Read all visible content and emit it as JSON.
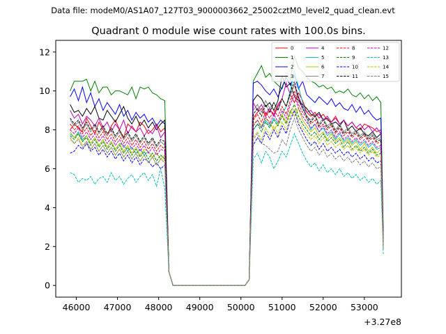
{
  "chart_data": {
    "type": "line",
    "suptitle": "Data file: modeM0/AS1A07_127T03_9000003662_25002cztM0_level2_quad_clean.evt",
    "title": "Quadrant 0 module wise count rates with 100.0s bins.",
    "xlabel": "",
    "ylabel": "",
    "x_offset_label": "+3.27e8",
    "xlim": [
      45500,
      53900
    ],
    "ylim": [
      -0.6,
      12.6
    ],
    "xticks": [
      46000,
      47000,
      48000,
      49000,
      50000,
      51000,
      52000,
      53000
    ],
    "yticks": [
      0,
      2,
      4,
      6,
      8,
      10,
      12
    ],
    "x_start": 45850,
    "x_step": 100,
    "gap_range": [
      48200,
      50100
    ],
    "legend_position": "top-right",
    "series": [
      {
        "name": "0",
        "color": "#ff0000",
        "style": "solid",
        "seg1": [
          8.0,
          8.3,
          8.1,
          7.9,
          8.6,
          8.2,
          7.8,
          8.4,
          8.0,
          7.7,
          8.2,
          8.5,
          8.0,
          7.6,
          8.3,
          8.1,
          7.9,
          8.4,
          8.2,
          7.8,
          8.0,
          8.3,
          7.9,
          8.1
        ],
        "seg2": [
          8.6,
          8.9,
          9.1,
          8.7,
          9.0,
          8.8,
          9.3,
          9.6,
          9.2,
          9.8,
          9.4,
          9.9,
          9.5,
          8.9,
          8.7,
          8.9,
          8.6,
          8.8,
          8.5,
          8.4,
          8.7,
          8.3,
          8.5,
          8.2,
          8.4,
          8.1,
          8.0,
          8.3,
          8.2,
          8.1,
          7.9,
          8.0
        ]
      },
      {
        "name": "1",
        "color": "#008000",
        "style": "solid",
        "seg1": [
          10.0,
          10.5,
          10.5,
          10.5,
          10.6,
          10.0,
          10.5,
          9.9,
          10.2,
          10.2,
          9.8,
          10.0,
          10.0,
          9.9,
          9.8,
          10.2,
          9.6,
          10.2,
          10.1,
          10.2,
          9.9,
          9.8,
          9.6,
          9.5
        ],
        "seg2": [
          10.5,
          10.9,
          11.3,
          10.7,
          10.9,
          10.5,
          10.3,
          10.1,
          10.8,
          10.6,
          11.8,
          11.2,
          11.0,
          10.7,
          10.5,
          10.4,
          10.2,
          10.3,
          10.1,
          10.2,
          9.9,
          10.0,
          9.9,
          10.1,
          9.8,
          9.7,
          9.9,
          9.6,
          9.8,
          9.5,
          9.7,
          9.4
        ]
      },
      {
        "name": "2",
        "color": "#0000ff",
        "style": "solid",
        "seg1": [
          9.7,
          10.1,
          9.5,
          10.2,
          9.4,
          9.9,
          9.2,
          9.6,
          9.0,
          9.4,
          9.1,
          8.8,
          9.3,
          8.7,
          9.0,
          8.5,
          8.9,
          8.6,
          8.8,
          8.4,
          8.6,
          8.2,
          8.5,
          8.3
        ],
        "seg2": [
          10.4,
          10.5,
          10.3,
          10.0,
          9.8,
          10.1,
          9.7,
          10.2,
          10.7,
          10.3,
          10.8,
          10.1,
          10.5,
          9.8,
          9.6,
          9.4,
          9.7,
          9.5,
          9.3,
          9.6,
          9.2,
          9.4,
          9.1,
          9.0,
          9.3,
          8.9,
          9.2,
          8.8,
          9.0,
          8.7,
          8.5,
          8.6
        ]
      },
      {
        "name": "3",
        "color": "#000000",
        "style": "solid",
        "seg1": [
          9.3,
          8.9,
          9.0,
          8.7,
          9.1,
          8.8,
          9.2,
          8.6,
          8.5,
          9.0,
          8.7,
          8.4,
          8.8,
          9.2,
          8.6,
          8.3,
          8.7,
          8.2,
          8.5,
          8.1,
          8.4,
          8.0,
          8.3,
          8.5
        ],
        "seg2": [
          9.5,
          9.8,
          9.6,
          9.2,
          9.4,
          9.0,
          9.5,
          10.8,
          10.2,
          10.4,
          9.7,
          9.5,
          9.3,
          9.1,
          8.8,
          8.7,
          8.9,
          8.5,
          8.6,
          8.3,
          8.4,
          8.2,
          8.5,
          8.0,
          8.2,
          7.9,
          8.1,
          7.8,
          7.7,
          7.9,
          7.6,
          7.8
        ]
      },
      {
        "name": "4",
        "color": "#bf00bf",
        "style": "solid",
        "seg1": [
          9.0,
          8.6,
          8.8,
          8.3,
          8.7,
          8.5,
          8.2,
          8.6,
          8.1,
          8.4,
          7.9,
          8.3,
          8.0,
          8.5,
          7.8,
          8.2,
          7.9,
          8.1,
          7.7,
          8.0,
          7.8,
          8.2,
          7.6,
          7.9
        ],
        "seg2": [
          9.4,
          9.0,
          9.3,
          8.8,
          9.1,
          8.7,
          9.2,
          9.6,
          10.4,
          9.8,
          10.3,
          9.7,
          9.2,
          8.9,
          9.0,
          8.7,
          8.8,
          8.5,
          8.7,
          8.4,
          8.6,
          8.3,
          8.5,
          8.2,
          8.4,
          8.1,
          8.3,
          8.0,
          8.2,
          7.9,
          8.1,
          7.8
        ]
      },
      {
        "name": "5",
        "color": "#00bfbf",
        "style": "solid",
        "seg1": [
          7.8,
          7.6,
          7.9,
          7.5,
          7.7,
          7.3,
          7.6,
          7.2,
          7.5,
          7.1,
          7.4,
          7.0,
          7.3,
          7.2,
          6.9,
          7.1,
          6.8,
          7.0,
          6.7,
          6.9,
          6.6,
          6.8,
          6.5,
          6.7
        ],
        "seg2": [
          8.0,
          8.3,
          8.1,
          8.5,
          8.2,
          8.6,
          8.3,
          8.8,
          9.2,
          10.0,
          11.0,
          10.2,
          9.4,
          8.6,
          8.0,
          8.3,
          7.9,
          8.1,
          7.7,
          7.9,
          7.5,
          7.8,
          7.4,
          7.6,
          7.3,
          7.5,
          7.2,
          7.4,
          7.1,
          7.3,
          7.0,
          7.1
        ]
      },
      {
        "name": "6",
        "color": "#bfbf00",
        "style": "solid",
        "seg1": [
          7.9,
          7.6,
          7.8,
          7.4,
          7.7,
          7.3,
          7.6,
          7.2,
          7.5,
          7.1,
          7.4,
          7.0,
          7.3,
          6.9,
          7.2,
          6.8,
          7.1,
          6.7,
          7.0,
          6.9,
          6.6,
          6.8,
          6.5,
          6.7
        ],
        "seg2": [
          8.3,
          8.5,
          8.2,
          8.6,
          8.4,
          8.0,
          8.3,
          8.8,
          8.4,
          9.0,
          8.7,
          9.1,
          8.5,
          8.2,
          7.9,
          8.1,
          7.7,
          7.9,
          7.5,
          7.8,
          7.4,
          7.6,
          7.3,
          7.5,
          7.2,
          7.4,
          7.0,
          7.3,
          6.9,
          7.1,
          6.8,
          7.0
        ]
      },
      {
        "name": "7",
        "color": "#808080",
        "style": "solid",
        "seg1": [
          8.5,
          8.2,
          8.4,
          8.0,
          8.3,
          7.9,
          8.2,
          7.8,
          8.1,
          7.7,
          8.0,
          7.6,
          7.9,
          7.5,
          7.8,
          7.4,
          7.7,
          7.3,
          7.6,
          7.2,
          7.5,
          7.1,
          7.4,
          7.2
        ],
        "seg2": [
          9.0,
          9.3,
          8.9,
          9.5,
          9.1,
          9.4,
          9.0,
          9.6,
          9.2,
          9.8,
          10.3,
          9.5,
          9.1,
          8.7,
          8.5,
          8.8,
          8.3,
          8.6,
          8.2,
          8.4,
          8.0,
          8.3,
          7.9,
          8.1,
          7.8,
          8.0,
          7.7,
          7.9,
          7.6,
          7.8,
          7.5,
          7.6
        ]
      },
      {
        "name": "8",
        "color": "#ff0000",
        "style": "dashed",
        "seg1": [
          8.3,
          8.0,
          8.2,
          7.8,
          8.1,
          7.7,
          8.0,
          7.6,
          7.9,
          7.5,
          7.8,
          7.4,
          7.7,
          7.3,
          7.6,
          7.2,
          7.5,
          7.1,
          7.4,
          7.0,
          7.3,
          6.9,
          7.2,
          7.0
        ],
        "seg2": [
          8.5,
          8.8,
          8.4,
          8.9,
          8.6,
          9.0,
          8.7,
          9.2,
          8.8,
          9.5,
          10.0,
          9.3,
          8.9,
          8.6,
          8.3,
          8.5,
          8.1,
          8.3,
          8.0,
          8.2,
          7.8,
          8.1,
          7.7,
          7.9,
          7.6,
          7.8,
          7.5,
          7.7,
          7.4,
          7.6,
          7.3,
          7.4
        ]
      },
      {
        "name": "9",
        "color": "#008000",
        "style": "dashed",
        "seg1": [
          7.7,
          7.5,
          7.8,
          7.4,
          7.6,
          7.2,
          7.5,
          7.1,
          7.4,
          7.0,
          7.3,
          6.9,
          7.2,
          6.8,
          7.1,
          6.7,
          7.0,
          6.6,
          6.9,
          6.5,
          6.8,
          6.4,
          6.7,
          6.5
        ],
        "seg2": [
          8.0,
          8.3,
          7.9,
          8.4,
          8.1,
          8.5,
          8.2,
          8.7,
          8.3,
          8.9,
          9.3,
          8.7,
          8.3,
          8.0,
          7.7,
          7.9,
          7.5,
          7.8,
          7.4,
          7.6,
          7.3,
          7.5,
          7.1,
          7.4,
          7.0,
          7.2,
          6.9,
          7.1,
          6.8,
          7.0,
          6.7,
          6.8
        ]
      },
      {
        "name": "10",
        "color": "#0000ff",
        "style": "dashed",
        "seg1": [
          6.8,
          6.9,
          7.2,
          7.0,
          7.3,
          6.9,
          7.1,
          6.7,
          7.0,
          6.6,
          6.9,
          6.5,
          6.8,
          6.4,
          6.7,
          6.3,
          6.6,
          6.2,
          6.5,
          6.4,
          6.1,
          6.3,
          6.0,
          6.2
        ],
        "seg2": [
          7.2,
          7.6,
          7.3,
          7.9,
          7.5,
          8.0,
          7.6,
          8.2,
          7.8,
          8.5,
          9.0,
          8.3,
          7.9,
          7.5,
          7.2,
          7.4,
          7.0,
          7.3,
          6.9,
          7.1,
          6.8,
          7.0,
          6.7,
          6.9,
          6.6,
          6.8,
          6.5,
          6.7,
          6.4,
          6.6,
          6.3,
          6.4
        ]
      },
      {
        "name": "11",
        "color": "#000000",
        "style": "dashed",
        "seg1": [
          8.6,
          8.3,
          8.5,
          8.1,
          8.4,
          8.0,
          8.3,
          7.9,
          8.2,
          7.8,
          8.1,
          7.7,
          8.0,
          7.6,
          7.9,
          7.5,
          7.8,
          7.4,
          7.7,
          7.3,
          7.6,
          7.2,
          7.5,
          7.4
        ],
        "seg2": [
          8.8,
          9.1,
          8.7,
          9.3,
          8.9,
          9.4,
          9.0,
          9.6,
          9.2,
          9.9,
          10.5,
          9.6,
          9.1,
          8.7,
          8.4,
          8.7,
          8.2,
          8.5,
          8.1,
          8.3,
          7.9,
          8.2,
          7.8,
          8.0,
          7.7,
          7.9,
          7.6,
          7.8,
          7.5,
          7.7,
          7.4,
          7.5
        ]
      },
      {
        "name": "12",
        "color": "#bf00bf",
        "style": "dashed",
        "seg1": [
          8.0,
          7.8,
          8.1,
          7.6,
          7.9,
          7.5,
          7.8,
          7.4,
          7.7,
          7.3,
          7.6,
          7.2,
          7.5,
          7.1,
          7.4,
          7.0,
          7.3,
          6.9,
          7.2,
          6.8,
          7.1,
          6.7,
          7.0,
          6.9
        ],
        "seg2": [
          8.2,
          8.5,
          8.1,
          8.7,
          8.3,
          8.8,
          8.4,
          9.0,
          8.6,
          9.3,
          9.8,
          9.1,
          8.7,
          8.4,
          8.1,
          8.3,
          7.9,
          8.2,
          7.8,
          8.0,
          7.6,
          7.9,
          7.5,
          7.7,
          7.4,
          7.6,
          7.3,
          7.5,
          7.2,
          7.4,
          7.1,
          7.2
        ]
      },
      {
        "name": "13",
        "color": "#00bfbf",
        "style": "dashed",
        "seg1": [
          5.8,
          5.7,
          5.3,
          5.5,
          5.4,
          5.6,
          5.2,
          5.5,
          5.6,
          5.3,
          5.8,
          5.4,
          5.6,
          5.2,
          5.5,
          5.7,
          5.3,
          5.6,
          5.8,
          5.4,
          5.7,
          5.1,
          6.0,
          5.0
        ],
        "seg2": [
          6.5,
          6.8,
          6.3,
          6.9,
          6.6,
          6.0,
          6.4,
          6.9,
          6.6,
          7.2,
          7.8,
          7.3,
          6.8,
          6.4,
          6.1,
          6.3,
          5.9,
          6.2,
          5.8,
          6.0,
          5.7,
          6.0,
          5.6,
          5.8,
          5.5,
          5.7,
          5.4,
          5.6,
          5.3,
          5.5,
          5.2,
          5.4
        ]
      },
      {
        "name": "14",
        "color": "#bfbf00",
        "style": "dashed",
        "seg1": [
          7.5,
          7.3,
          7.6,
          7.2,
          7.4,
          7.0,
          7.3,
          6.9,
          7.2,
          6.8,
          7.1,
          6.7,
          7.0,
          6.6,
          6.9,
          6.5,
          6.8,
          6.4,
          6.7,
          6.3,
          6.6,
          6.2,
          6.5,
          6.4
        ],
        "seg2": [
          7.6,
          7.9,
          7.5,
          8.1,
          7.7,
          8.2,
          7.8,
          8.4,
          8.0,
          8.7,
          9.1,
          8.5,
          8.1,
          7.8,
          7.5,
          7.7,
          7.3,
          7.6,
          7.2,
          7.4,
          7.1,
          7.3,
          7.0,
          7.2,
          6.9,
          7.1,
          6.8,
          7.0,
          6.7,
          6.9,
          6.6,
          6.7
        ]
      },
      {
        "name": "15",
        "color": "#808080",
        "style": "dashed",
        "seg1": [
          7.6,
          7.3,
          7.5,
          7.1,
          7.4,
          7.0,
          7.3,
          6.9,
          7.2,
          6.8,
          7.1,
          6.7,
          7.0,
          6.6,
          6.9,
          6.5,
          6.8,
          6.4,
          6.7,
          6.3,
          6.6,
          6.2,
          6.5,
          6.3
        ],
        "seg2": [
          7.5,
          7.8,
          7.3,
          7.2,
          7.0,
          6.8,
          6.9,
          7.5,
          7.2,
          8.0,
          8.6,
          8.0,
          7.6,
          7.2,
          6.9,
          7.1,
          6.7,
          7.0,
          6.6,
          6.8,
          6.5,
          6.7,
          6.4,
          6.6,
          6.3,
          6.5,
          6.2,
          6.4,
          6.1,
          6.3,
          6.0,
          6.1
        ]
      }
    ]
  }
}
